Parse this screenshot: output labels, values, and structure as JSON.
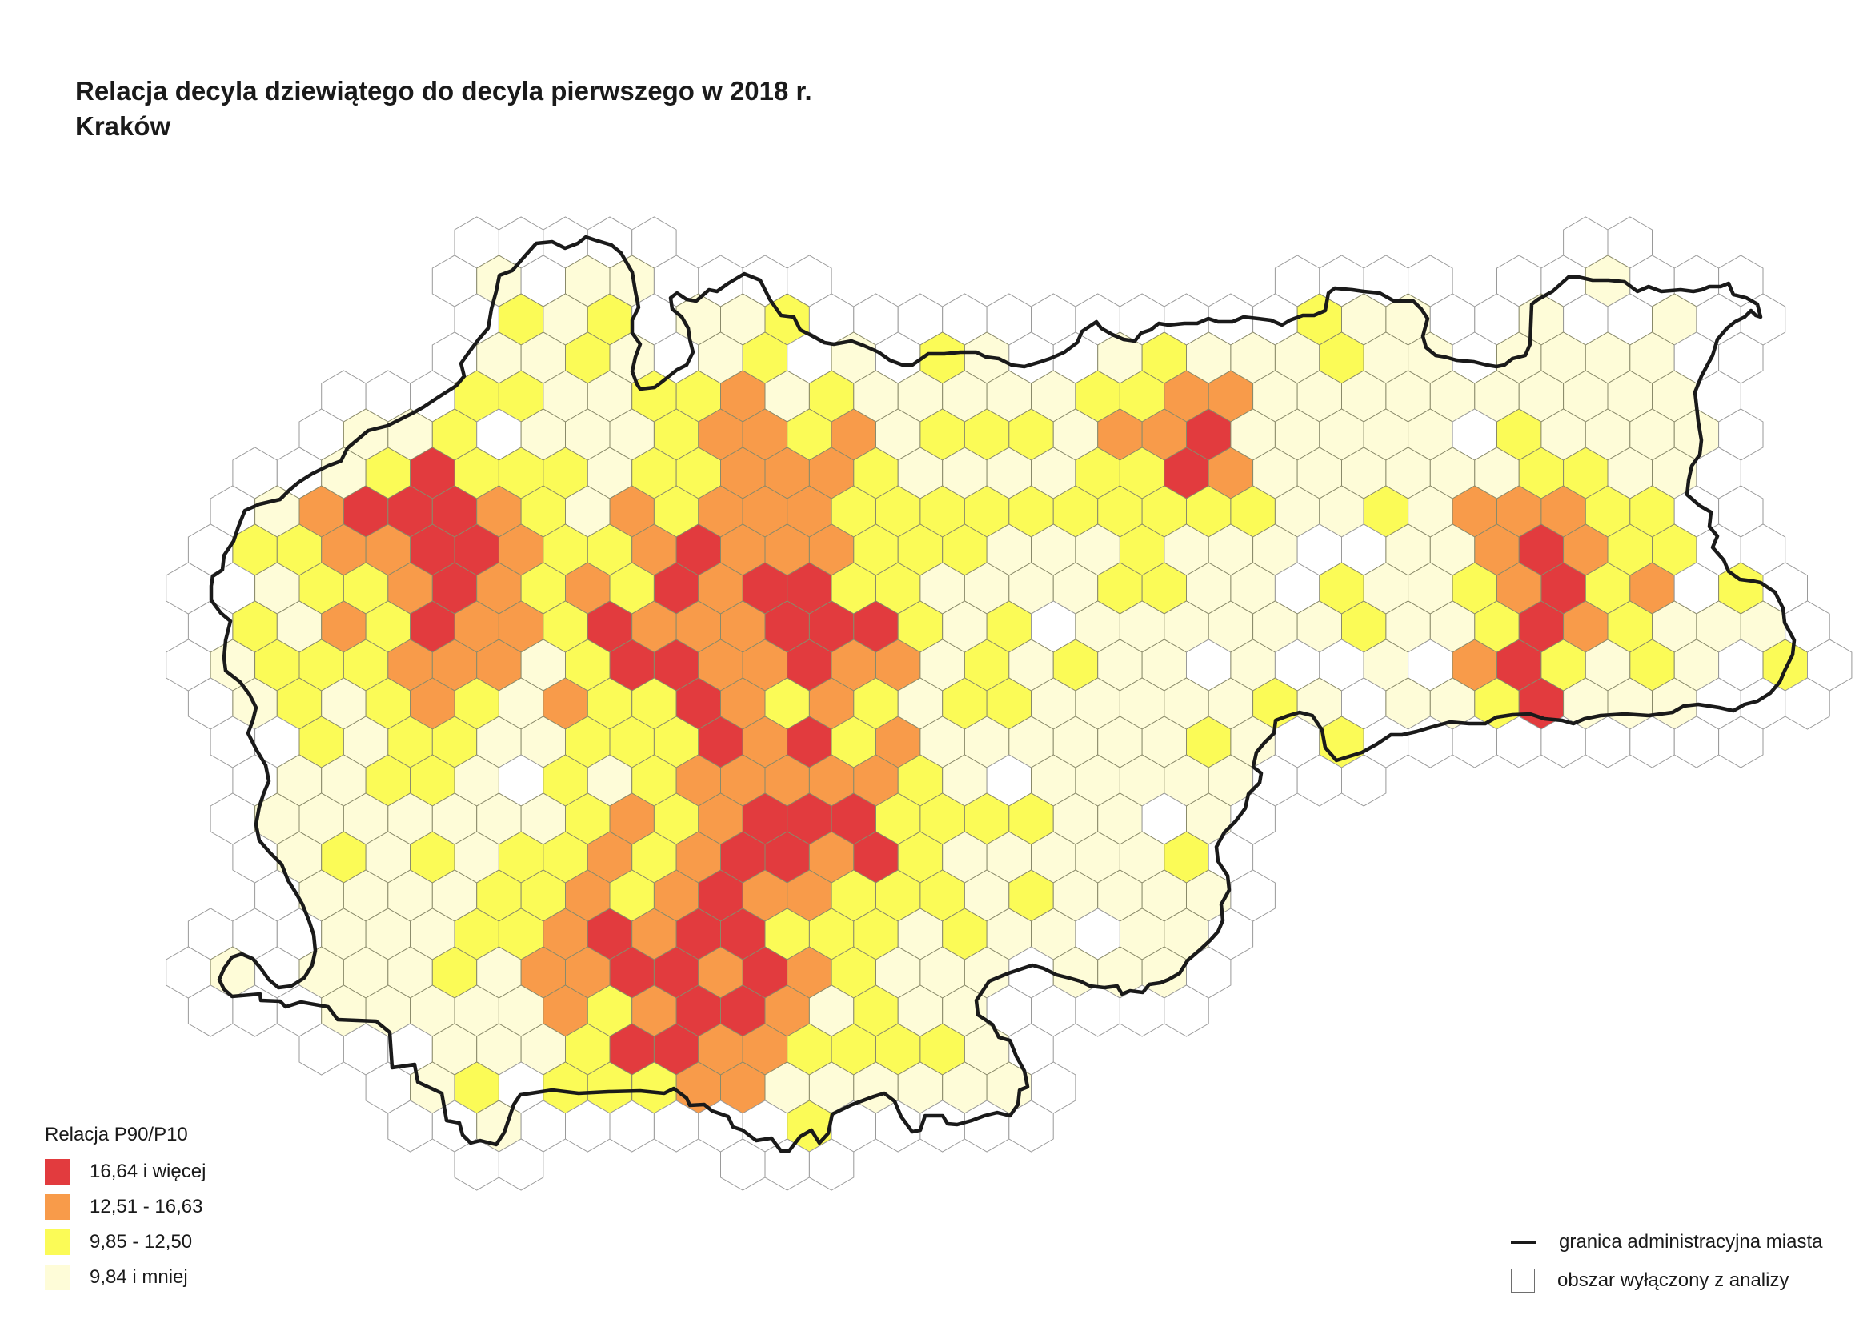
{
  "title": {
    "line1": "Relacja decyla dziewiątego do decyla pierwszego w 2018 r.",
    "line2": "Kraków"
  },
  "colors": {
    "class1": "#e23b3e",
    "class2": "#f89b4a",
    "class3": "#fbfb57",
    "class4": "#fefcd8",
    "excluded": "#ffffff",
    "hex_stroke_analyzed": "#8a8a6a",
    "hex_stroke_excluded": "#9a9a9a",
    "boundary": "#1a1a1a"
  },
  "legend": {
    "title": "Relacja P90/P10",
    "classes": [
      {
        "label": "16,64 i więcej",
        "color": "#e23b3e"
      },
      {
        "label": "12,51 - 16,63",
        "color": "#f89b4a"
      },
      {
        "label": "9,85 - 12,50",
        "color": "#fbfb57"
      },
      {
        "label": "9,84 i mniej",
        "color": "#fefcd8"
      }
    ],
    "boundary_label": "granica administracyjna miasta",
    "excluded_label": "obszar wyłączony z analizy"
  }
}
